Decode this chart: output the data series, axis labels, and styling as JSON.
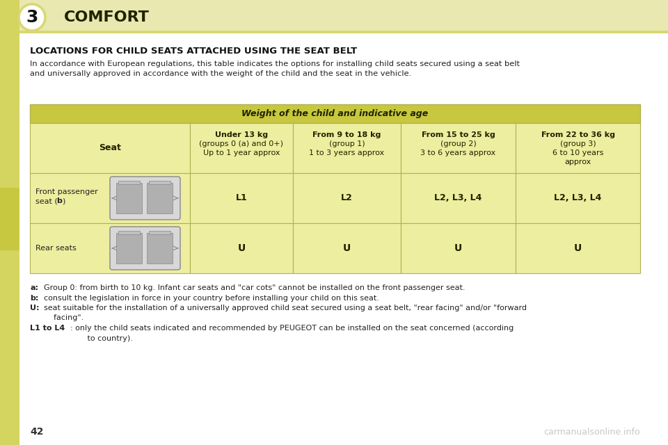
{
  "page_bg": "#ffffff",
  "header_bg": "#e8e8b0",
  "header_bg_dark": "#d8d870",
  "sidebar_bg": "#d4d460",
  "sidebar_tab_bg": "#c8c840",
  "tab_header_bg": "#c8c840",
  "tab_row_bg": "#eeeea0",
  "tab_border_color": "#b0b050",
  "chapter_num": "3",
  "chapter_title": "COMFORT",
  "section_title": "LOCATIONS FOR CHILD SEATS ATTACHED USING THE SEAT BELT",
  "intro_line1": "In accordance with European regulations, this table indicates the options for installing child seats secured using a seat belt",
  "intro_line2": "and universally approved in accordance with the weight of the child and the seat in the vehicle.",
  "table_header_main": "Weight of the child and indicative age",
  "col0_header": "Seat",
  "col1_header_line1": "Under 13 kg",
  "col1_header_line2": "(groups 0 (a) and 0+)",
  "col1_header_line3": "Up to 1 year approx",
  "col2_header_line1": "From 9 to 18 kg",
  "col2_header_line2": "(group 1)",
  "col2_header_line3": "1 to 3 years approx",
  "col3_header_line1": "From 15 to 25 kg",
  "col3_header_line2": "(group 2)",
  "col3_header_line3": "3 to 6 years approx",
  "col4_header_line1": "From 22 to 36 kg",
  "col4_header_line2": "(group 3)",
  "col4_header_line3": "6 to 10 years",
  "col4_header_line4": "approx",
  "row1_label_line1": "Front passenger",
  "row1_label_line2": "seat (",
  "row1_label_b": "b",
  "row1_label_line3": ")",
  "row1_values": [
    "L1",
    "L2",
    "L2, L3, L4",
    "L2, L3, L4"
  ],
  "row2_label": "Rear seats",
  "row2_values": [
    "U",
    "U",
    "U",
    "U"
  ],
  "fn_a_key": "a:",
  "fn_a_val": "Group 0: from birth to 10 kg. Infant car seats and \"car cots\" cannot be installed on the front passenger seat.",
  "fn_b_key": "b:",
  "fn_b_val": "consult the legislation in force in your country before installing your child on this seat.",
  "fn_u_key": "U:",
  "fn_u_val1": "seat suitable for the installation of a universally approved child seat secured using a seat belt, \"rear facing\" and/or \"forward",
  "fn_u_val2": "    facing\".",
  "fn_l_key": "L1 to L4",
  "fn_l_val1": ": only the child seats indicated and recommended by PEUGEOT can be installed on the seat concerned (according",
  "fn_l_val2": "       to country).",
  "page_number": "42",
  "watermark": "carmanualsonline.info"
}
